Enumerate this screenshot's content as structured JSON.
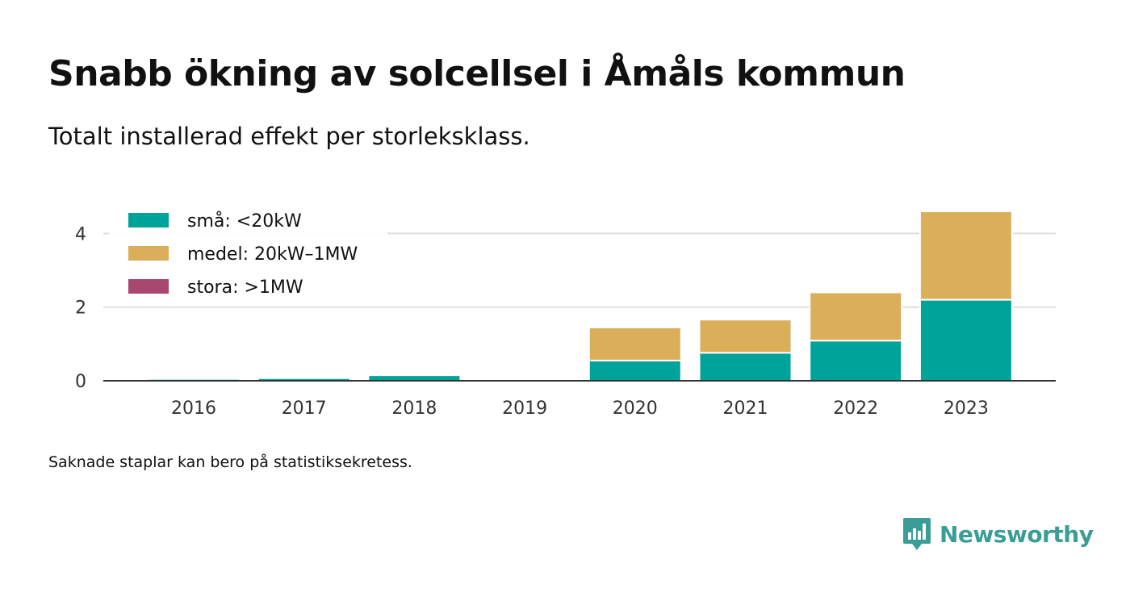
{
  "header": {
    "title": "Snabb ökning av solcellsel i Åmåls kommun",
    "subtitle": "Totalt installerad effekt per storleksklass."
  },
  "footnote": "Saknade staplar kan bero på statistiksekretess.",
  "brand": {
    "name": "Newsworthy",
    "icon": "newsworthy-logo-icon",
    "color": "#3a9e97"
  },
  "chart_data": {
    "type": "bar",
    "stacked": true,
    "categories": [
      "2016",
      "2017",
      "2018",
      "2019",
      "2020",
      "2021",
      "2022",
      "2023"
    ],
    "series": [
      {
        "name": "små: <20kW",
        "color": "#00a39a",
        "values": [
          0.05,
          0.07,
          0.15,
          0,
          0.55,
          0.76,
          1.09,
          2.2
        ]
      },
      {
        "name": "medel: 20kW–1MW",
        "color": "#dbae5a",
        "values": [
          0,
          0,
          0,
          0,
          0.9,
          0.9,
          1.31,
          2.4
        ]
      },
      {
        "name": "stora: >1MW",
        "color": "#a8476f",
        "values": [
          0,
          0,
          0,
          0,
          0,
          0,
          0,
          0
        ]
      }
    ],
    "yticks": [
      0,
      2,
      4
    ],
    "ylim": [
      0,
      4.6
    ],
    "grid": true,
    "legend": "top-left"
  }
}
